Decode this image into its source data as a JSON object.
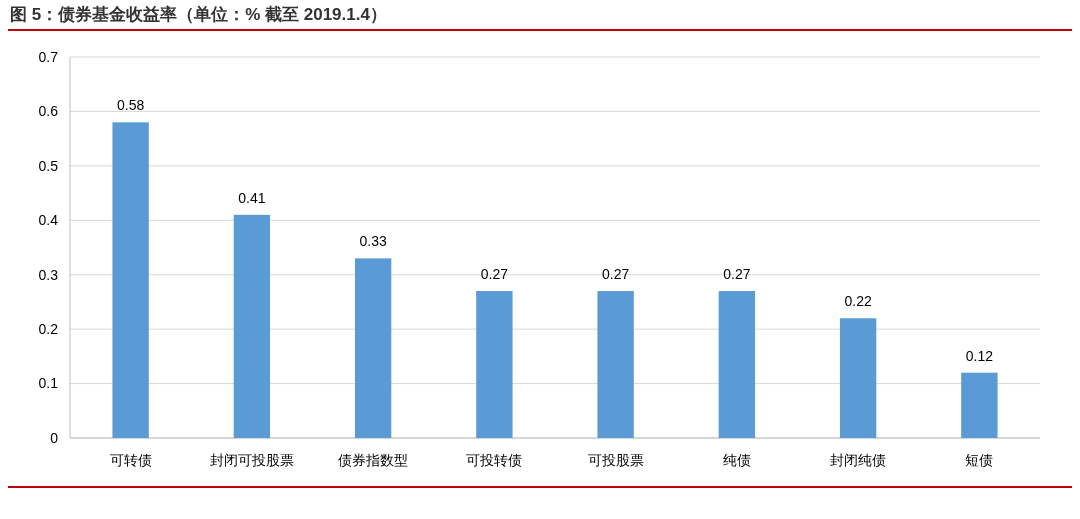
{
  "chart_data": {
    "type": "bar",
    "title": "图 5：债券基金收益率（单位：% 截至 2019.1.4）",
    "categories": [
      "可转债",
      "封闭可投股票",
      "债券指数型",
      "可投转债",
      "可投股票",
      "纯债",
      "封闭纯债",
      "短债"
    ],
    "values": [
      0.58,
      0.41,
      0.33,
      0.27,
      0.27,
      0.27,
      0.22,
      0.12
    ],
    "color": "#5b9bd5",
    "ylim": [
      0,
      0.7
    ],
    "yticks": [
      0,
      0.1,
      0.2,
      0.3,
      0.4,
      0.5,
      0.6,
      0.7
    ],
    "grid": "y",
    "data_labels": true
  }
}
